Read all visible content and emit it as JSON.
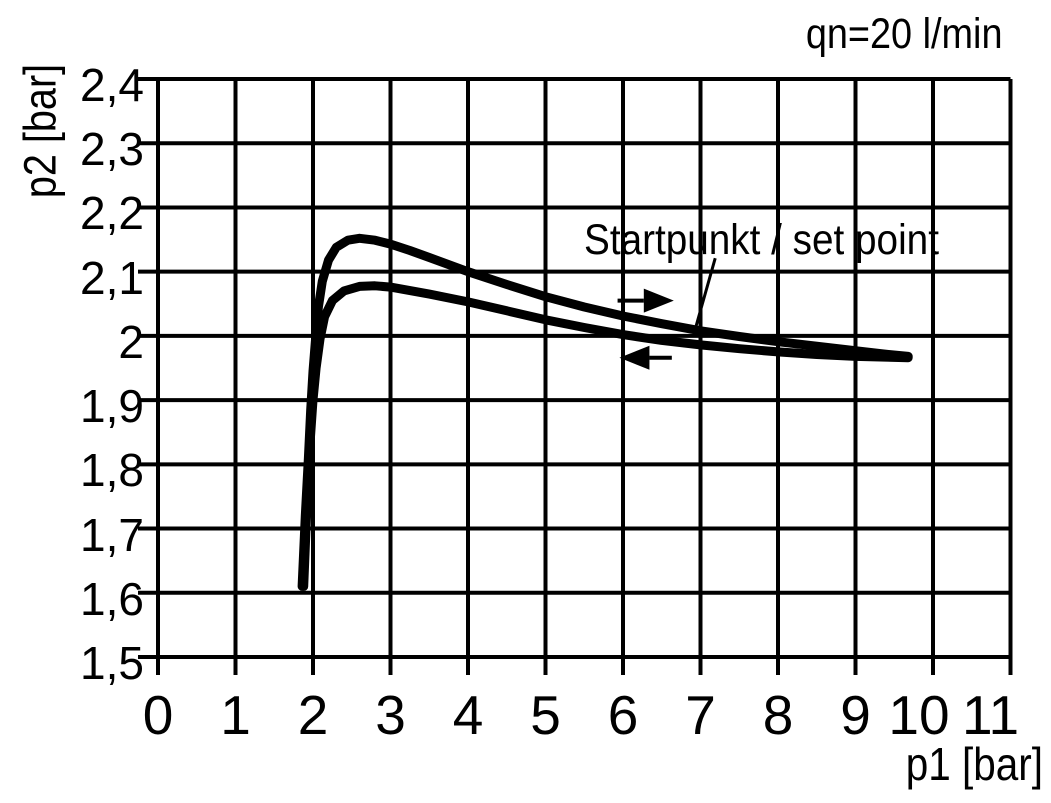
{
  "colors": {
    "foreground": "#000000",
    "background": "#ffffff"
  },
  "annotations": {
    "flow_rate": "qn=20 l/min",
    "set_point": "Startpunkt / set point"
  },
  "chart_data": {
    "type": "line",
    "title": "",
    "xlabel": "p1 [bar]",
    "ylabel": "p2 [bar]",
    "xlim": [
      0,
      11
    ],
    "ylim": [
      1.5,
      2.4
    ],
    "grid": true,
    "x_ticks": [
      0,
      1,
      2,
      3,
      4,
      5,
      6,
      7,
      8,
      9,
      10,
      11
    ],
    "x_tick_labels": [
      "0",
      "1",
      "2",
      "3",
      "4",
      "5",
      "6",
      "7",
      "8",
      "9",
      "10",
      "11"
    ],
    "y_ticks": [
      1.5,
      1.6,
      1.7,
      1.8,
      1.9,
      2.0,
      2.1,
      2.2,
      2.3,
      2.4
    ],
    "y_tick_labels": [
      "1,5",
      "1,6",
      "1,7",
      "1,8",
      "1,9",
      "2",
      "2,1",
      "2,2",
      "2,3",
      "2,4"
    ],
    "series": [
      {
        "name": "upper_curve",
        "points": [
          [
            1.86,
            1.61
          ],
          [
            1.9,
            1.72
          ],
          [
            1.94,
            1.81
          ],
          [
            1.97,
            1.885
          ],
          [
            2.0,
            1.945
          ],
          [
            2.03,
            1.99
          ],
          [
            2.07,
            2.045
          ],
          [
            2.12,
            2.085
          ],
          [
            2.2,
            2.118
          ],
          [
            2.3,
            2.138
          ],
          [
            2.45,
            2.149
          ],
          [
            2.6,
            2.152
          ],
          [
            2.8,
            2.149
          ],
          [
            3.0,
            2.143
          ],
          [
            3.25,
            2.133
          ],
          [
            3.5,
            2.122
          ],
          [
            4.0,
            2.1
          ],
          [
            4.5,
            2.08
          ],
          [
            5.0,
            2.061
          ],
          [
            5.5,
            2.045
          ],
          [
            6.0,
            2.031
          ],
          [
            6.5,
            2.019
          ],
          [
            7.0,
            2.008
          ],
          [
            7.5,
            1.999
          ],
          [
            8.0,
            1.991
          ],
          [
            8.5,
            1.984
          ],
          [
            9.0,
            1.977
          ],
          [
            9.35,
            1.972
          ],
          [
            9.68,
            1.968
          ]
        ]
      },
      {
        "name": "lower_curve",
        "points": [
          [
            1.88,
            1.61
          ],
          [
            1.92,
            1.73
          ],
          [
            1.96,
            1.83
          ],
          [
            2.0,
            1.9
          ],
          [
            2.04,
            1.95
          ],
          [
            2.09,
            1.995
          ],
          [
            2.15,
            2.03
          ],
          [
            2.25,
            2.055
          ],
          [
            2.4,
            2.07
          ],
          [
            2.6,
            2.077
          ],
          [
            2.8,
            2.078
          ],
          [
            3.0,
            2.076
          ],
          [
            3.5,
            2.065
          ],
          [
            4.0,
            2.053
          ],
          [
            4.5,
            2.039
          ],
          [
            5.0,
            2.025
          ],
          [
            5.5,
            2.013
          ],
          [
            6.0,
            2.002
          ],
          [
            6.5,
            1.993
          ],
          [
            7.0,
            1.986
          ],
          [
            7.5,
            1.98
          ],
          [
            8.0,
            1.975
          ],
          [
            8.5,
            1.971
          ],
          [
            9.0,
            1.968
          ],
          [
            9.68,
            1.966
          ]
        ]
      }
    ],
    "arrows": [
      {
        "direction": "right",
        "x_start": 5.93,
        "x_end": 6.63,
        "y": 2.055
      },
      {
        "direction": "left",
        "x_start": 6.63,
        "x_end": 5.98,
        "y": 1.966
      }
    ],
    "leader_line": {
      "from": [
        7.19,
        2.121
      ],
      "to": [
        6.94,
        2.014
      ]
    },
    "annotations": {
      "flow_rate": "qn=20 l/min",
      "set_point_label": "Startpunkt / set point"
    }
  }
}
